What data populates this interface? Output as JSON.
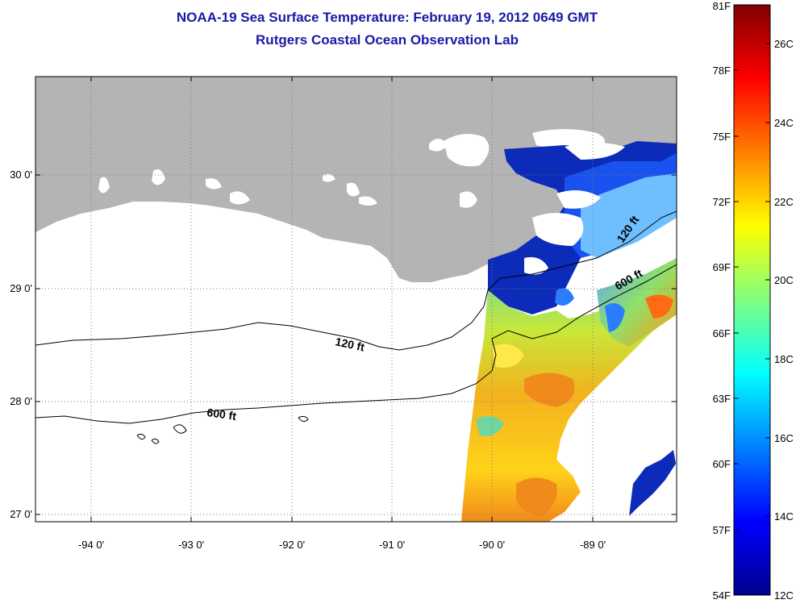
{
  "title": "NOAA-19 Sea Surface Temperature:  February 19, 2012 0649 GMT",
  "subtitle": "Rutgers Coastal Ocean Observation Lab",
  "map": {
    "lat_labels": [
      "30 0'",
      "29 0'",
      "28 0'",
      "27 0'"
    ],
    "lon_labels": [
      "-94 0'",
      "-93 0'",
      "-92 0'",
      "-91 0'",
      "-90 0'",
      "-89 0'"
    ],
    "contour_labels": [
      "120 ft",
      "600 ft",
      "120 ft",
      "600 ft"
    ],
    "colors": {
      "land": "#b4b4b4",
      "cloud_mask": "#ffffff",
      "contour": "#000000"
    }
  },
  "colorbar": {
    "f_labels": [
      "81F",
      "78F",
      "75F",
      "72F",
      "69F",
      "66F",
      "63F",
      "60F",
      "57F",
      "54F"
    ],
    "c_labels": [
      "26C",
      "24C",
      "22C",
      "20C",
      "18C",
      "16C",
      "14C",
      "12C"
    ],
    "f_range": [
      54,
      81
    ],
    "c_range": [
      12,
      27
    ],
    "colormap": "jet"
  }
}
